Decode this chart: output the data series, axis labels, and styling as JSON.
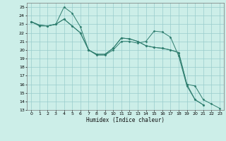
{
  "xlabel": "Humidex (Indice chaleur)",
  "xlim": [
    -0.5,
    23.5
  ],
  "ylim": [
    13,
    25.5
  ],
  "yticks": [
    13,
    14,
    15,
    16,
    17,
    18,
    19,
    20,
    21,
    22,
    23,
    24,
    25
  ],
  "xticks": [
    0,
    1,
    2,
    3,
    4,
    5,
    6,
    7,
    8,
    9,
    10,
    11,
    12,
    13,
    14,
    15,
    16,
    17,
    18,
    19,
    20,
    21,
    22,
    23
  ],
  "bg_color": "#cceee8",
  "grid_color": "#99cccc",
  "line_color": "#2e7d6e",
  "series": [
    [
      23.3,
      22.8,
      22.8,
      23.0,
      25.0,
      24.3,
      22.7,
      20.0,
      19.4,
      19.4,
      20.0,
      21.0,
      21.0,
      20.8,
      21.0,
      22.2,
      22.1,
      21.5,
      19.3,
      15.8,
      14.2,
      13.6,
      null,
      null
    ],
    [
      23.3,
      22.9,
      22.8,
      23.0,
      23.6,
      22.8,
      22.0,
      20.0,
      19.5,
      19.5,
      20.2,
      21.4,
      21.3,
      21.0,
      20.5,
      20.3,
      20.2,
      20.0,
      19.7,
      16.0,
      14.2,
      13.6,
      null,
      null
    ],
    [
      23.3,
      22.9,
      22.8,
      23.0,
      23.6,
      22.8,
      22.0,
      20.0,
      19.5,
      19.5,
      20.2,
      21.4,
      21.3,
      21.0,
      20.5,
      20.3,
      20.2,
      20.0,
      19.7,
      16.0,
      15.8,
      14.2,
      13.7,
      13.2
    ]
  ]
}
